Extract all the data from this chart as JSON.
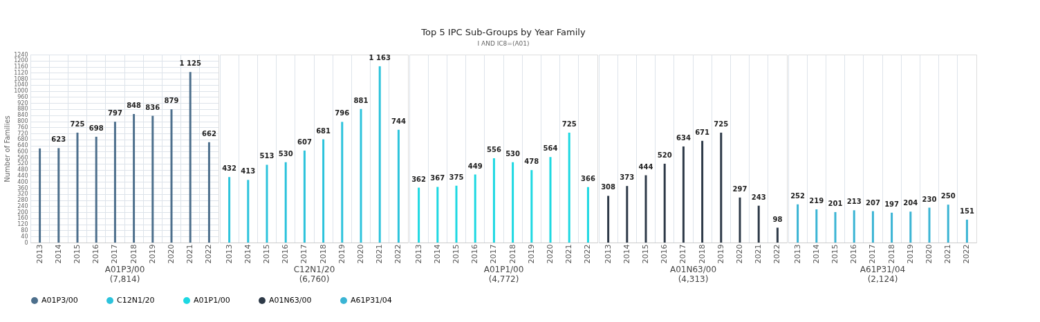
{
  "chart_data": [
    {
      "type": "bar",
      "ylabel": "Number of Families",
      "xlabel": "A01P3/00\n(7,814)",
      "categories": [
        "2013",
        "2014",
        "2015",
        "2016",
        "2017",
        "2018",
        "2019",
        "2020",
        "2021",
        "2022"
      ],
      "series": [
        {
          "name": "A01P3/00",
          "color": "#4d6f8c",
          "values": [
            621,
            623,
            725,
            698,
            797,
            848,
            836,
            879,
            1125,
            662
          ]
        }
      ],
      "value_labels": [
        null,
        "623",
        "725",
        "698",
        "797",
        "848",
        "836",
        "879",
        "1 125",
        "662"
      ],
      "ylim": [
        0,
        1240
      ],
      "yticks": [
        0,
        40,
        80,
        120,
        160,
        200,
        240,
        280,
        320,
        360,
        400,
        440,
        480,
        520,
        560,
        600,
        640,
        680,
        720,
        760,
        800,
        840,
        880,
        920,
        960,
        1000,
        1040,
        1080,
        1120,
        1160,
        1200,
        1240
      ],
      "grid": true,
      "legend": "bottom"
    },
    {
      "type": "bar",
      "xlabel": "C12N1/20\n(6,760)",
      "categories": [
        "2013",
        "2014",
        "2015",
        "2016",
        "2017",
        "2018",
        "2019",
        "2020",
        "2021",
        "2022"
      ],
      "series": [
        {
          "name": "C12N1/20",
          "color": "#2cc3dc",
          "values": [
            432,
            413,
            513,
            530,
            607,
            681,
            796,
            881,
            1163,
            744
          ]
        }
      ],
      "value_labels": [
        "432",
        "413",
        "513",
        "530",
        "607",
        "681",
        "796",
        "881",
        "1 163",
        "744"
      ],
      "ylim": [
        0,
        1240
      ],
      "tick_labels": "x",
      "grid": true,
      "legend": "bottom"
    },
    {
      "type": "bar",
      "title": "Top 5 IPC Sub-Groups by Year Family",
      "subtitle": "I AND IC8=(A01)",
      "xlabel": "A01P1/00\n(4,772)",
      "categories": [
        "2013",
        "2014",
        "2015",
        "2016",
        "2017",
        "2018",
        "2019",
        "2020",
        "2021",
        "2022"
      ],
      "series": [
        {
          "name": "A01P1/00",
          "color": "#1dd8e2",
          "values": [
            362,
            367,
            375,
            449,
            556,
            530,
            478,
            564,
            725,
            366
          ]
        }
      ],
      "data_labels": true,
      "ylim": [
        0,
        1240
      ],
      "tick_labels": "x",
      "grid": true,
      "legend": "bottom"
    },
    {
      "type": "bar",
      "xlabel": "A01N63/00\n(4,313)",
      "categories": [
        "2013",
        "2014",
        "2015",
        "2016",
        "2017",
        "2018",
        "2019",
        "2020",
        "2021",
        "2022"
      ],
      "series": [
        {
          "name": "A01N63/00",
          "color": "#2e3a48",
          "values": [
            308,
            373,
            444,
            520,
            634,
            671,
            725,
            297,
            243,
            98
          ]
        }
      ],
      "data_labels": true,
      "ylim": [
        0,
        1240
      ],
      "tick_labels": "x",
      "grid": true,
      "legend": "bottom"
    },
    {
      "type": "bar",
      "xlabel": "A61P31/04\n(2,124)",
      "categories": [
        "2013",
        "2014",
        "2015",
        "2016",
        "2017",
        "2018",
        "2019",
        "2020",
        "2021",
        "2022"
      ],
      "series": [
        {
          "name": "A61P31/04",
          "color": "#3ab4d4",
          "values": [
            252,
            219,
            201,
            213,
            207,
            197,
            204,
            230,
            250,
            151
          ]
        }
      ],
      "data_labels": true,
      "ylim": [
        0,
        1240
      ],
      "tick_labels": "x",
      "grid": true,
      "legend": "bottom"
    }
  ]
}
